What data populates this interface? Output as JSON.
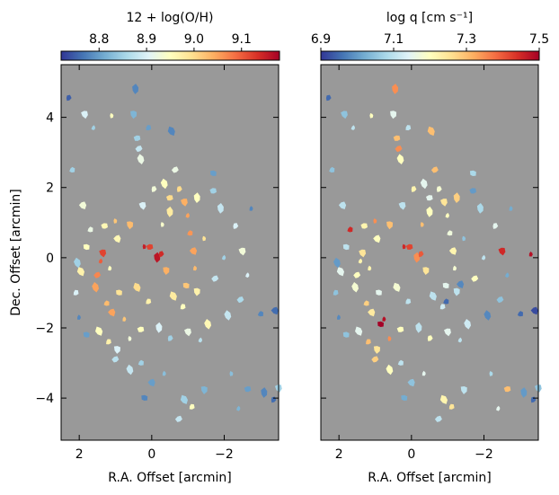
{
  "chart_data": [
    {
      "type": "scatter",
      "panel": "left",
      "title": "12 + log(O/H)",
      "xlabel": "R.A. Offset [arcmin]",
      "ylabel": "Dec. Offset [arcmin]",
      "xlim": [
        2.5,
        -3.5
      ],
      "ylim": [
        -5.2,
        5.5
      ],
      "xticks": [
        2,
        0,
        -2
      ],
      "yticks": [
        4,
        2,
        0,
        -2,
        -4
      ],
      "xtick_labels": [
        "2",
        "0",
        "−2"
      ],
      "ytick_labels": [
        "4",
        "2",
        "0",
        "−2",
        "−4"
      ],
      "colorbar": {
        "label": "12 + log(O/H)",
        "min": 8.72,
        "max": 9.18,
        "ticks": [
          8.8,
          8.9,
          9.0,
          9.1
        ],
        "tick_labels": [
          "8.8",
          "8.9",
          "9.0",
          "9.1"
        ]
      },
      "points": [
        {
          "x": 0.2,
          "y": 0.32,
          "v": 9.15
        },
        {
          "x": 0.05,
          "y": 0.3,
          "v": 9.12
        },
        {
          "x": -0.15,
          "y": 0.0,
          "v": 9.16
        },
        {
          "x": -0.25,
          "y": 0.1,
          "v": 9.14
        },
        {
          "x": 1.35,
          "y": 0.15,
          "v": 9.12
        },
        {
          "x": 1.4,
          "y": -0.1,
          "v": 9.1
        },
        {
          "x": 1.5,
          "y": -0.5,
          "v": 9.07
        },
        {
          "x": 1.55,
          "y": -0.85,
          "v": 9.05
        },
        {
          "x": 1.25,
          "y": -1.3,
          "v": 9.03
        },
        {
          "x": 1.1,
          "y": -1.55,
          "v": 9.05
        },
        {
          "x": 0.75,
          "y": -1.75,
          "v": 9.02
        },
        {
          "x": 1.8,
          "y": 0.3,
          "v": 8.95
        },
        {
          "x": 1.95,
          "y": -0.4,
          "v": 8.97
        },
        {
          "x": 2.1,
          "y": -1.0,
          "v": 8.9
        },
        {
          "x": 0.6,
          "y": 0.95,
          "v": 9.03
        },
        {
          "x": 1.0,
          "y": 1.05,
          "v": 9.02
        },
        {
          "x": 1.3,
          "y": 0.9,
          "v": 8.96
        },
        {
          "x": -0.5,
          "y": 1.3,
          "v": 8.98
        },
        {
          "x": -0.75,
          "y": 1.95,
          "v": 9.0
        },
        {
          "x": -0.9,
          "y": 1.6,
          "v": 9.04
        },
        {
          "x": -1.0,
          "y": 1.2,
          "v": 9.05
        },
        {
          "x": -0.65,
          "y": 2.5,
          "v": 8.92
        },
        {
          "x": -0.35,
          "y": 2.1,
          "v": 8.95
        },
        {
          "x": -1.05,
          "y": 0.7,
          "v": 9.06
        },
        {
          "x": -1.15,
          "y": 0.2,
          "v": 9.05
        },
        {
          "x": -1.2,
          "y": -0.3,
          "v": 9.03
        },
        {
          "x": -0.95,
          "y": -0.8,
          "v": 9.02
        },
        {
          "x": -0.6,
          "y": -1.1,
          "v": 8.98
        },
        {
          "x": -0.85,
          "y": -1.4,
          "v": 8.95
        },
        {
          "x": -1.25,
          "y": -0.95,
          "v": 8.97
        },
        {
          "x": -1.45,
          "y": 0.55,
          "v": 8.99
        },
        {
          "x": -1.7,
          "y": 1.9,
          "v": 8.85
        },
        {
          "x": -1.9,
          "y": 1.4,
          "v": 8.88
        },
        {
          "x": -2.3,
          "y": 0.9,
          "v": 8.9
        },
        {
          "x": -2.5,
          "y": 0.2,
          "v": 8.93
        },
        {
          "x": -2.65,
          "y": -0.5,
          "v": 8.9
        },
        {
          "x": -2.45,
          "y": -1.2,
          "v": 8.86
        },
        {
          "x": -2.1,
          "y": -1.65,
          "v": 8.88
        },
        {
          "x": -3.0,
          "y": -1.6,
          "v": 8.78
        },
        {
          "x": -3.4,
          "y": -1.5,
          "v": 8.76
        },
        {
          "x": -2.75,
          "y": 1.4,
          "v": 8.78
        },
        {
          "x": -1.7,
          "y": 2.4,
          "v": 8.8
        },
        {
          "x": -0.55,
          "y": 3.6,
          "v": 8.78
        },
        {
          "x": 0.1,
          "y": 3.7,
          "v": 8.8
        },
        {
          "x": 0.5,
          "y": 4.1,
          "v": 8.82
        },
        {
          "x": 1.1,
          "y": 4.05,
          "v": 8.95
        },
        {
          "x": 0.4,
          "y": 3.4,
          "v": 8.85
        },
        {
          "x": 0.45,
          "y": 4.8,
          "v": 8.78
        },
        {
          "x": 2.3,
          "y": 4.55,
          "v": 8.75
        },
        {
          "x": 1.85,
          "y": 4.1,
          "v": 8.9
        },
        {
          "x": 1.6,
          "y": 3.7,
          "v": 8.85
        },
        {
          "x": 0.35,
          "y": 3.1,
          "v": 8.88
        },
        {
          "x": 0.3,
          "y": 2.8,
          "v": 8.92
        },
        {
          "x": 2.2,
          "y": 2.5,
          "v": 8.85
        },
        {
          "x": 1.9,
          "y": 1.5,
          "v": 8.93
        },
        {
          "x": 2.0,
          "y": -1.7,
          "v": 8.78
        },
        {
          "x": 1.8,
          "y": -2.2,
          "v": 8.8
        },
        {
          "x": 1.45,
          "y": -2.1,
          "v": 8.95
        },
        {
          "x": 1.2,
          "y": -2.4,
          "v": 8.97
        },
        {
          "x": 0.95,
          "y": -2.6,
          "v": 8.9
        },
        {
          "x": 0.6,
          "y": -2.3,
          "v": 8.93
        },
        {
          "x": 0.3,
          "y": -2.05,
          "v": 8.95
        },
        {
          "x": -0.2,
          "y": -2.0,
          "v": 8.9
        },
        {
          "x": -0.5,
          "y": -2.3,
          "v": 8.85
        },
        {
          "x": -1.0,
          "y": -2.1,
          "v": 8.92
        },
        {
          "x": -1.35,
          "y": -2.35,
          "v": 8.87
        },
        {
          "x": 1.0,
          "y": -2.9,
          "v": 8.87
        },
        {
          "x": 0.6,
          "y": -3.2,
          "v": 8.88
        },
        {
          "x": 0.3,
          "y": -3.0,
          "v": 8.85
        },
        {
          "x": 0.0,
          "y": -3.55,
          "v": 8.8
        },
        {
          "x": -0.35,
          "y": -3.3,
          "v": 8.83
        },
        {
          "x": 0.2,
          "y": -4.0,
          "v": 8.78
        },
        {
          "x": -0.9,
          "y": -4.05,
          "v": 8.85
        },
        {
          "x": -1.1,
          "y": -4.25,
          "v": 8.95
        },
        {
          "x": -1.45,
          "y": -3.75,
          "v": 8.82
        },
        {
          "x": -2.2,
          "y": -3.3,
          "v": 8.83
        },
        {
          "x": -2.65,
          "y": -3.75,
          "v": 8.8
        },
        {
          "x": -3.1,
          "y": -3.85,
          "v": 8.78
        },
        {
          "x": -3.35,
          "y": -4.05,
          "v": 8.76
        },
        {
          "x": -3.5,
          "y": -3.7,
          "v": 8.85
        },
        {
          "x": -2.4,
          "y": -4.3,
          "v": 8.82
        },
        {
          "x": -0.75,
          "y": -4.6,
          "v": 8.88
        },
        {
          "x": 2.05,
          "y": -0.15,
          "v": 8.85
        },
        {
          "x": 1.7,
          "y": 0.8,
          "v": 8.92
        },
        {
          "x": 0.95,
          "y": 0.55,
          "v": 8.96
        },
        {
          "x": 1.15,
          "y": -0.3,
          "v": 8.95
        },
        {
          "x": 0.9,
          "y": -1.0,
          "v": 8.99
        },
        {
          "x": 0.4,
          "y": -0.85,
          "v": 9.0
        },
        {
          "x": 0.1,
          "y": -1.25,
          "v": 8.97
        },
        {
          "x": -0.4,
          "y": -0.35,
          "v": 9.04
        },
        {
          "x": -0.3,
          "y": 0.95,
          "v": 8.94
        },
        {
          "x": -0.5,
          "y": 1.7,
          "v": 9.0
        },
        {
          "x": -1.25,
          "y": 1.7,
          "v": 8.95
        },
        {
          "x": -0.05,
          "y": 1.95,
          "v": 8.93
        },
        {
          "x": 0.25,
          "y": 1.5,
          "v": 8.9
        },
        {
          "x": -2.0,
          "y": 0.0,
          "v": 8.85
        },
        {
          "x": -1.75,
          "y": -0.6,
          "v": 8.88
        },
        {
          "x": -1.55,
          "y": -1.9,
          "v": 8.96
        }
      ]
    },
    {
      "type": "scatter",
      "panel": "right",
      "title": "log q [cm s⁻¹]",
      "xlabel": "R.A. Offset [arcmin]",
      "ylabel": "",
      "xlim": [
        2.5,
        -3.5
      ],
      "ylim": [
        -5.2,
        5.5
      ],
      "xticks": [
        2,
        0,
        -2
      ],
      "yticks": [
        4,
        2,
        0,
        -2,
        -4
      ],
      "xtick_labels": [
        "2",
        "0",
        "−2"
      ],
      "ytick_labels": [],
      "colorbar": {
        "label": "log q [cm s⁻¹]",
        "min": 6.9,
        "max": 7.5,
        "ticks": [
          6.9,
          7.1,
          7.3,
          7.5
        ],
        "tick_labels": [
          "6.9",
          "7.1",
          "7.3",
          "7.5"
        ]
      },
      "points": [
        {
          "x": 0.2,
          "y": 0.32,
          "v": 7.45
        },
        {
          "x": 0.05,
          "y": 0.3,
          "v": 7.42
        },
        {
          "x": -0.15,
          "y": 0.0,
          "v": 7.35
        },
        {
          "x": -0.25,
          "y": 0.1,
          "v": 7.4
        },
        {
          "x": 1.35,
          "y": 0.15,
          "v": 7.25
        },
        {
          "x": 1.4,
          "y": -0.1,
          "v": 7.22
        },
        {
          "x": 1.5,
          "y": -0.5,
          "v": 7.2
        },
        {
          "x": 1.55,
          "y": -0.85,
          "v": 7.18
        },
        {
          "x": 1.25,
          "y": -1.3,
          "v": 7.28
        },
        {
          "x": 1.1,
          "y": -1.55,
          "v": 7.24
        },
        {
          "x": 0.75,
          "y": -1.75,
          "v": 7.48
        },
        {
          "x": 1.8,
          "y": 0.3,
          "v": 7.1
        },
        {
          "x": 1.95,
          "y": -0.4,
          "v": 7.15
        },
        {
          "x": 2.1,
          "y": -1.0,
          "v": 7.05
        },
        {
          "x": 0.6,
          "y": 0.95,
          "v": 7.3
        },
        {
          "x": 1.0,
          "y": 1.05,
          "v": 7.35
        },
        {
          "x": 1.3,
          "y": 0.9,
          "v": 7.22
        },
        {
          "x": -0.5,
          "y": 1.3,
          "v": 7.2
        },
        {
          "x": -0.75,
          "y": 1.95,
          "v": 7.18
        },
        {
          "x": -0.9,
          "y": 1.6,
          "v": 7.25
        },
        {
          "x": -1.0,
          "y": 1.2,
          "v": 7.2
        },
        {
          "x": -0.65,
          "y": 2.5,
          "v": 7.3
        },
        {
          "x": -0.35,
          "y": 2.1,
          "v": 7.15
        },
        {
          "x": -1.05,
          "y": 0.7,
          "v": 7.17
        },
        {
          "x": -1.15,
          "y": 0.2,
          "v": 7.22
        },
        {
          "x": -1.2,
          "y": -0.3,
          "v": 7.18
        },
        {
          "x": -0.95,
          "y": -0.8,
          "v": 7.15
        },
        {
          "x": -0.6,
          "y": -1.1,
          "v": 7.1
        },
        {
          "x": -0.85,
          "y": -1.4,
          "v": 7.12
        },
        {
          "x": -1.25,
          "y": -0.95,
          "v": 7.1
        },
        {
          "x": -1.45,
          "y": 0.55,
          "v": 7.05
        },
        {
          "x": -1.7,
          "y": 1.9,
          "v": 7.0
        },
        {
          "x": -1.9,
          "y": 1.4,
          "v": 7.08
        },
        {
          "x": -2.3,
          "y": 0.9,
          "v": 7.15
        },
        {
          "x": -2.5,
          "y": 0.2,
          "v": 7.45
        },
        {
          "x": -2.65,
          "y": -0.5,
          "v": 7.02
        },
        {
          "x": -2.45,
          "y": -1.2,
          "v": 7.05
        },
        {
          "x": -2.1,
          "y": -1.65,
          "v": 6.98
        },
        {
          "x": -3.0,
          "y": -1.6,
          "v": 6.95
        },
        {
          "x": -3.4,
          "y": -1.5,
          "v": 6.92
        },
        {
          "x": -2.75,
          "y": 1.4,
          "v": 7.02
        },
        {
          "x": -1.7,
          "y": 2.4,
          "v": 7.08
        },
        {
          "x": -0.55,
          "y": 3.6,
          "v": 7.3
        },
        {
          "x": 0.1,
          "y": 3.7,
          "v": 7.1
        },
        {
          "x": 0.5,
          "y": 4.1,
          "v": 7.15
        },
        {
          "x": 1.1,
          "y": 4.05,
          "v": 7.2
        },
        {
          "x": 0.4,
          "y": 3.4,
          "v": 7.3
        },
        {
          "x": 0.45,
          "y": 4.8,
          "v": 7.35
        },
        {
          "x": 2.3,
          "y": 4.55,
          "v": 6.95
        },
        {
          "x": 1.85,
          "y": 4.1,
          "v": 7.05
        },
        {
          "x": 1.6,
          "y": 3.7,
          "v": 7.1
        },
        {
          "x": 0.35,
          "y": 3.1,
          "v": 7.35
        },
        {
          "x": 0.3,
          "y": 2.8,
          "v": 7.2
        },
        {
          "x": 2.2,
          "y": 2.5,
          "v": 7.05
        },
        {
          "x": 1.9,
          "y": 1.5,
          "v": 7.1
        },
        {
          "x": 2.0,
          "y": -1.7,
          "v": 6.98
        },
        {
          "x": 1.8,
          "y": -2.2,
          "v": 7.05
        },
        {
          "x": 1.45,
          "y": -2.1,
          "v": 7.15
        },
        {
          "x": 1.2,
          "y": -2.4,
          "v": 7.3
        },
        {
          "x": 0.95,
          "y": -2.6,
          "v": 7.25
        },
        {
          "x": 0.6,
          "y": -2.3,
          "v": 7.35
        },
        {
          "x": 0.3,
          "y": -2.05,
          "v": 7.2
        },
        {
          "x": -0.2,
          "y": -2.0,
          "v": 7.1
        },
        {
          "x": -0.5,
          "y": -2.3,
          "v": 7.2
        },
        {
          "x": -1.0,
          "y": -2.1,
          "v": 7.15
        },
        {
          "x": -1.35,
          "y": -2.35,
          "v": 7.1
        },
        {
          "x": 1.0,
          "y": -2.9,
          "v": 7.28
        },
        {
          "x": 0.6,
          "y": -3.2,
          "v": 7.2
        },
        {
          "x": 0.3,
          "y": -3.0,
          "v": 7.1
        },
        {
          "x": 0.0,
          "y": -3.55,
          "v": 7.05
        },
        {
          "x": -0.35,
          "y": -3.3,
          "v": 7.15
        },
        {
          "x": 0.2,
          "y": -4.0,
          "v": 7.02
        },
        {
          "x": -0.9,
          "y": -4.05,
          "v": 7.22
        },
        {
          "x": -1.1,
          "y": -4.25,
          "v": 7.25
        },
        {
          "x": -1.45,
          "y": -3.75,
          "v": 7.1
        },
        {
          "x": -2.2,
          "y": -3.3,
          "v": 7.08
        },
        {
          "x": -2.65,
          "y": -3.75,
          "v": 7.3
        },
        {
          "x": -3.1,
          "y": -3.85,
          "v": 7.0
        },
        {
          "x": -3.35,
          "y": -4.05,
          "v": 6.95
        },
        {
          "x": -3.5,
          "y": -3.7,
          "v": 7.05
        },
        {
          "x": -2.4,
          "y": -4.3,
          "v": 7.15
        },
        {
          "x": -0.75,
          "y": -4.6,
          "v": 7.1
        },
        {
          "x": 2.05,
          "y": -0.15,
          "v": 7.0
        },
        {
          "x": 1.7,
          "y": 0.8,
          "v": 7.45
        },
        {
          "x": 0.95,
          "y": 0.55,
          "v": 7.2
        },
        {
          "x": 1.15,
          "y": -0.3,
          "v": 7.22
        },
        {
          "x": 0.9,
          "y": -1.0,
          "v": 7.15
        },
        {
          "x": 0.4,
          "y": -0.85,
          "v": 7.18
        },
        {
          "x": 0.1,
          "y": -1.25,
          "v": 7.1
        },
        {
          "x": -0.4,
          "y": -0.35,
          "v": 7.25
        },
        {
          "x": -0.3,
          "y": 0.95,
          "v": 7.3
        },
        {
          "x": -0.5,
          "y": 1.7,
          "v": 7.15
        },
        {
          "x": -1.25,
          "y": 1.7,
          "v": 7.28
        },
        {
          "x": -0.05,
          "y": 1.95,
          "v": 7.22
        },
        {
          "x": 0.25,
          "y": 1.5,
          "v": 7.1
        },
        {
          "x": -2.0,
          "y": 0.0,
          "v": 7.1
        },
        {
          "x": -1.75,
          "y": -0.6,
          "v": 7.2
        },
        {
          "x": -1.55,
          "y": -1.9,
          "v": 7.12
        },
        {
          "x": -0.95,
          "y": -1.25,
          "v": 6.95
        },
        {
          "x": -1.35,
          "y": -0.75,
          "v": 6.98
        },
        {
          "x": -3.3,
          "y": 0.1,
          "v": 7.48
        },
        {
          "x": 0.85,
          "y": -1.9,
          "v": 7.5
        }
      ]
    }
  ]
}
